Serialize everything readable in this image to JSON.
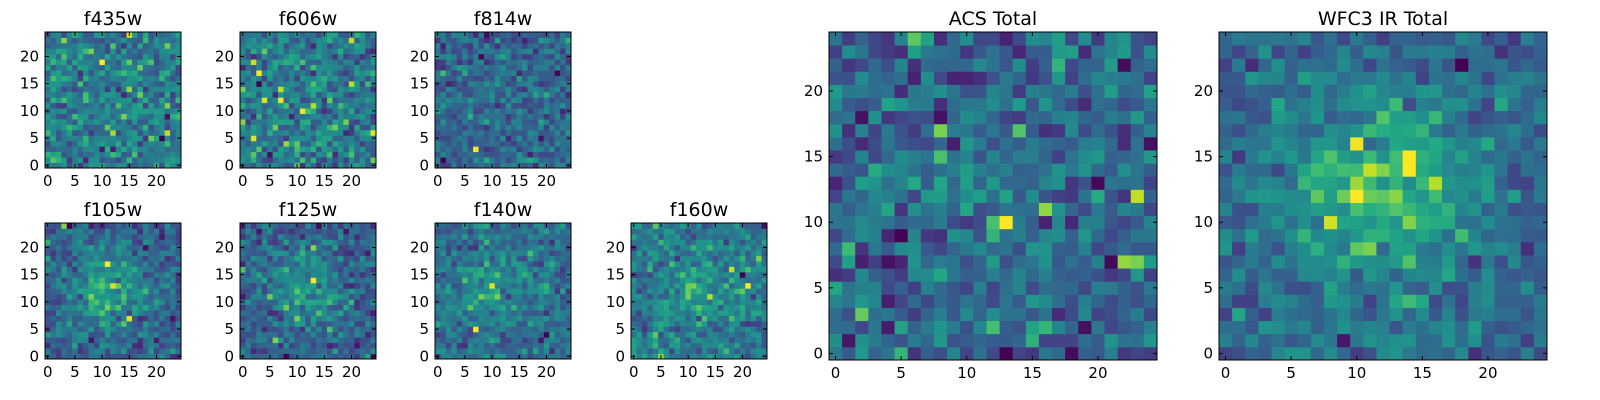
{
  "chart_data": [
    {
      "type": "heatmap",
      "title": "f435w",
      "xlim": [
        0,
        25
      ],
      "ylim": [
        0,
        25
      ],
      "xticks": [
        0,
        5,
        10,
        15,
        20
      ],
      "yticks": [
        0,
        5,
        10,
        15,
        20
      ],
      "colormap": "viridis",
      "grid": false,
      "noise_level": 1.0,
      "source_peak": 0.0,
      "pixel_grid": [
        25,
        25
      ]
    },
    {
      "type": "heatmap",
      "title": "f606w",
      "xlim": [
        0,
        25
      ],
      "ylim": [
        0,
        25
      ],
      "xticks": [
        0,
        5,
        10,
        15,
        20
      ],
      "yticks": [
        0,
        5,
        10,
        15,
        20
      ],
      "colormap": "viridis",
      "grid": false,
      "noise_level": 1.0,
      "source_peak": 0.4,
      "pixel_grid": [
        25,
        25
      ]
    },
    {
      "type": "heatmap",
      "title": "f814w",
      "xlim": [
        0,
        25
      ],
      "ylim": [
        0,
        25
      ],
      "xticks": [
        0,
        5,
        10,
        15,
        20
      ],
      "yticks": [
        0,
        5,
        10,
        15,
        20
      ],
      "colormap": "viridis",
      "grid": false,
      "noise_level": 1.0,
      "source_peak": 0.3,
      "pixel_grid": [
        25,
        25
      ]
    },
    {
      "type": "heatmap",
      "title": "f105w",
      "xlim": [
        0,
        25
      ],
      "ylim": [
        0,
        25
      ],
      "xticks": [
        0,
        5,
        10,
        15,
        20
      ],
      "yticks": [
        0,
        5,
        10,
        15,
        20
      ],
      "colormap": "viridis",
      "grid": false,
      "noise_level": 0.6,
      "source_peak": 1.6,
      "pixel_grid": [
        25,
        25
      ]
    },
    {
      "type": "heatmap",
      "title": "f125w",
      "xlim": [
        0,
        25
      ],
      "ylim": [
        0,
        25
      ],
      "xticks": [
        0,
        5,
        10,
        15,
        20
      ],
      "yticks": [
        0,
        5,
        10,
        15,
        20
      ],
      "colormap": "viridis",
      "grid": false,
      "noise_level": 0.7,
      "source_peak": 1.4,
      "pixel_grid": [
        25,
        25
      ]
    },
    {
      "type": "heatmap",
      "title": "f140w",
      "xlim": [
        0,
        25
      ],
      "ylim": [
        0,
        25
      ],
      "xticks": [
        0,
        5,
        10,
        15,
        20
      ],
      "yticks": [
        0,
        5,
        10,
        15,
        20
      ],
      "colormap": "viridis",
      "grid": false,
      "noise_level": 0.8,
      "source_peak": 1.2,
      "pixel_grid": [
        25,
        25
      ]
    },
    {
      "type": "heatmap",
      "title": "f160w",
      "xlim": [
        0,
        25
      ],
      "ylim": [
        0,
        25
      ],
      "xticks": [
        0,
        5,
        10,
        15,
        20
      ],
      "yticks": [
        0,
        5,
        10,
        15,
        20
      ],
      "colormap": "viridis",
      "grid": false,
      "noise_level": 0.9,
      "source_peak": 1.0,
      "pixel_grid": [
        25,
        25
      ]
    },
    {
      "type": "heatmap",
      "title": "ACS Total",
      "xlim": [
        0,
        25
      ],
      "ylim": [
        0,
        25
      ],
      "xticks": [
        0,
        5,
        10,
        15,
        20
      ],
      "yticks": [
        0,
        5,
        10,
        15,
        20
      ],
      "colormap": "viridis",
      "grid": false,
      "noise_level": 0.7,
      "source_peak": 0.5,
      "pixel_grid": [
        25,
        25
      ]
    },
    {
      "type": "heatmap",
      "title": "WFC3 IR Total",
      "xlim": [
        0,
        25
      ],
      "ylim": [
        0,
        25
      ],
      "xticks": [
        0,
        5,
        10,
        15,
        20
      ],
      "yticks": [
        0,
        5,
        10,
        15,
        20
      ],
      "colormap": "viridis",
      "grid": false,
      "noise_level": 0.45,
      "source_peak": 1.8,
      "pixel_grid": [
        25,
        25
      ]
    }
  ]
}
